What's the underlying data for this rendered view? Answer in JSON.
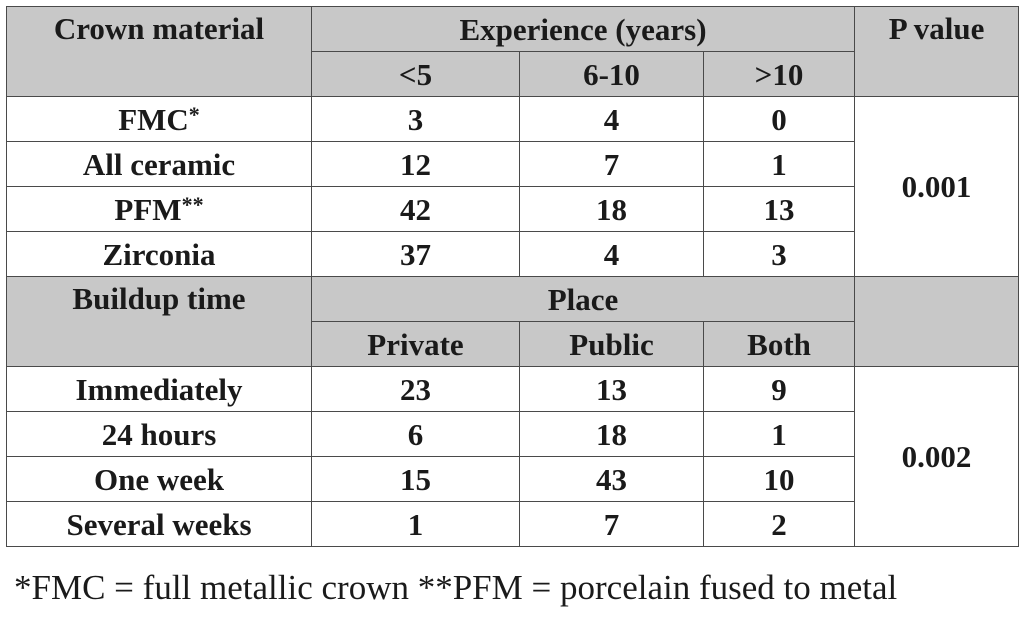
{
  "header1": {
    "col0": "Crown material",
    "group": "Experience (years)",
    "pvalue": "P value",
    "sub": [
      "<5",
      "6-10",
      ">10"
    ]
  },
  "crown_rows": [
    {
      "label": "FMC",
      "mark": "*",
      "values": [
        "3",
        "4",
        "0"
      ]
    },
    {
      "label": "All ceramic",
      "mark": "",
      "values": [
        "12",
        "7",
        "1"
      ]
    },
    {
      "label": "PFM",
      "mark": "**",
      "values": [
        "42",
        "18",
        "13"
      ]
    },
    {
      "label": "Zirconia",
      "mark": "",
      "values": [
        "37",
        "4",
        "3"
      ]
    }
  ],
  "crown_p": "0.001",
  "header2": {
    "col0": "Buildup time",
    "group": "Place",
    "sub": [
      "Private",
      "Public",
      "Both"
    ]
  },
  "buildup_rows": [
    {
      "label": "Immediately",
      "values": [
        "23",
        "13",
        "9"
      ]
    },
    {
      "label": "24 hours",
      "values": [
        "6",
        "18",
        "1"
      ]
    },
    {
      "label": "One week",
      "values": [
        "15",
        "43",
        "10"
      ]
    },
    {
      "label": "Several weeks",
      "values": [
        "1",
        "7",
        "2"
      ]
    }
  ],
  "buildup_p": "0.002",
  "footnote": "*FMC = full metallic crown **PFM = porcelain fused to metal"
}
